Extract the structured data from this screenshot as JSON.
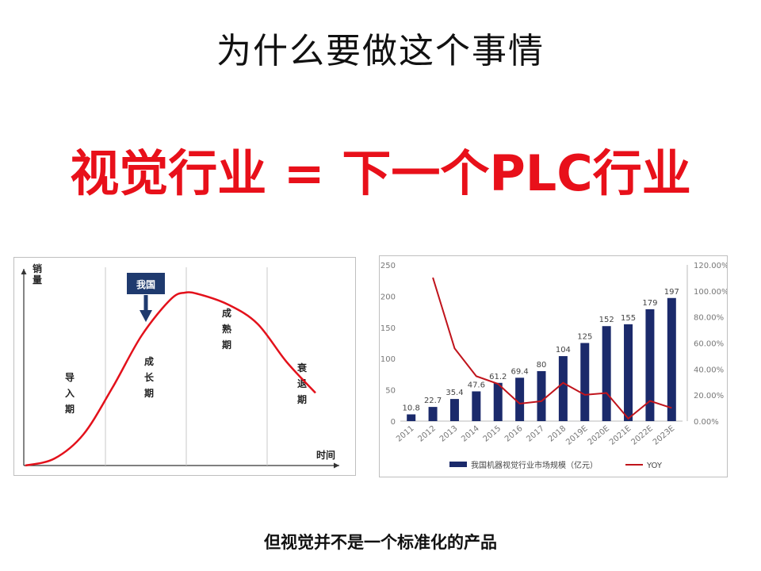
{
  "slide": {
    "title": "为什么要做这个事情",
    "headline": "视觉行业 = 下一个PLC行业",
    "caption": "但视觉并不是一个标准化的产品"
  },
  "colors": {
    "headline": "#e8101a",
    "bar": "#1b2a6b",
    "yoy_line": "#c0141c",
    "curve": "#e3111b",
    "marker": "#1f3a6e"
  },
  "chart_data": [
    {
      "type": "line",
      "ylabel": "销量",
      "xlabel": "时间",
      "stages": [
        "导入期",
        "成长期",
        "成熟期",
        "衰退期"
      ],
      "marker": {
        "label": "我国",
        "stage": "成长期"
      },
      "x": [
        0,
        0.1,
        0.2,
        0.3,
        0.4,
        0.5,
        0.55,
        0.6,
        0.7,
        0.8,
        0.9,
        1.0
      ],
      "y": [
        0,
        0.04,
        0.18,
        0.45,
        0.75,
        0.96,
        1.0,
        0.99,
        0.93,
        0.82,
        0.6,
        0.42
      ]
    },
    {
      "type": "bar",
      "categories": [
        "2011",
        "2012",
        "2013",
        "2014",
        "2015",
        "2016",
        "2017",
        "2018",
        "2019E",
        "2020E",
        "2021E",
        "2022E",
        "2023E"
      ],
      "series": [
        {
          "name": "我国机器视觉行业市场规模（亿元）",
          "type": "bar",
          "axis": "left",
          "values": [
            10.8,
            22.7,
            35.4,
            47.6,
            61.2,
            69.4,
            80,
            104,
            125,
            152,
            155,
            179,
            197
          ]
        },
        {
          "name": "YOY",
          "type": "line",
          "axis": "right",
          "values": [
            null,
            110.2,
            55.9,
            34.5,
            28.6,
            13.4,
            15.3,
            29.4,
            20.2,
            21.6,
            2.0,
            15.5,
            10.1
          ]
        }
      ],
      "left_ticks": [
        "0",
        "50",
        "100",
        "150",
        "200",
        "250"
      ],
      "right_ticks": [
        "0.00%",
        "20.00%",
        "40.00%",
        "60.00%",
        "80.00%",
        "100.00%",
        "120.00%"
      ],
      "ylim": [
        0,
        250
      ],
      "y2lim": [
        0,
        120
      ],
      "legend": "bottom"
    }
  ]
}
